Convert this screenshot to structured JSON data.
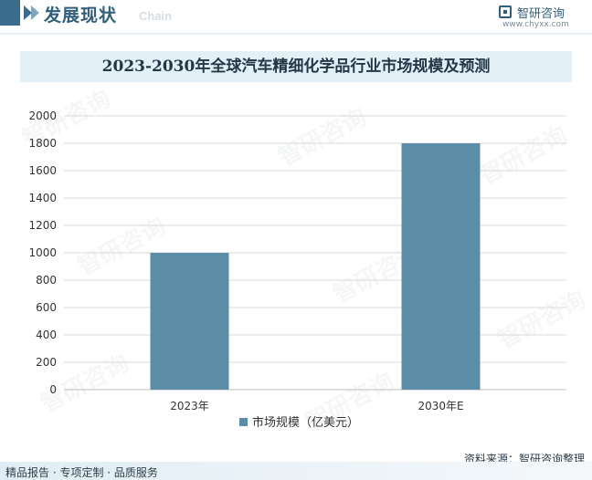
{
  "header": {
    "section_title": "发展现状",
    "section_subtitle": "Chain",
    "brand_name": "智研咨询",
    "brand_url": "www.chyxx.com"
  },
  "chart_data": {
    "type": "bar",
    "title": "2023-2030年全球汽车精细化学品行业市场规模及预测",
    "categories": [
      "2023年",
      "2030年E"
    ],
    "series": [
      {
        "name": "市场规模（亿美元）",
        "values": [
          1000,
          1800
        ]
      }
    ],
    "yticks": [
      "0",
      "200",
      "400",
      "600",
      "800",
      "1000",
      "1200",
      "1400",
      "1600",
      "1800",
      "2000"
    ],
    "ylim": [
      0,
      2000
    ],
    "grid": true,
    "legend": "bottom",
    "bar_color": "#5b8ea6"
  },
  "watermark_text": "智研咨询",
  "source": "资料来源：智研咨询整理",
  "footer_text": "精品报告 · 专项定制 · 品质服务"
}
